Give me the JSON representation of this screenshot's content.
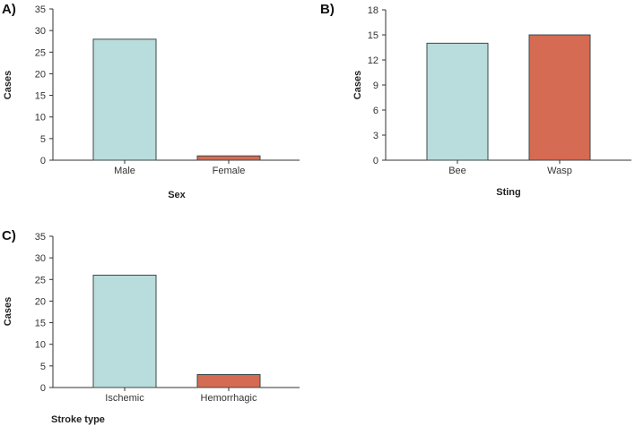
{
  "colors": {
    "bar_a": "#b9dcdc",
    "bar_b": "#d56b52",
    "axis": "#333333"
  },
  "chart_data": [
    {
      "panel": "A)",
      "type": "bar",
      "categories": [
        "Male",
        "Female"
      ],
      "values": [
        28,
        1
      ],
      "xlabel": "Sex",
      "ylabel": "Cases",
      "ylim": [
        0,
        35
      ],
      "yticks": [
        0,
        5,
        10,
        15,
        20,
        25,
        30,
        35
      ]
    },
    {
      "panel": "B)",
      "type": "bar",
      "categories": [
        "Bee",
        "Wasp"
      ],
      "values": [
        14,
        15
      ],
      "xlabel": "Sting",
      "ylabel": "Cases",
      "ylim": [
        0,
        18
      ],
      "yticks": [
        0,
        3,
        6,
        9,
        12,
        15,
        18
      ]
    },
    {
      "panel": "C)",
      "type": "bar",
      "categories": [
        "Ischemic",
        "Hemorrhagic"
      ],
      "values": [
        26,
        3
      ],
      "xlabel": "Stroke type",
      "ylabel": "Cases",
      "ylim": [
        0,
        35
      ],
      "yticks": [
        0,
        5,
        10,
        15,
        20,
        25,
        30,
        35
      ]
    }
  ]
}
